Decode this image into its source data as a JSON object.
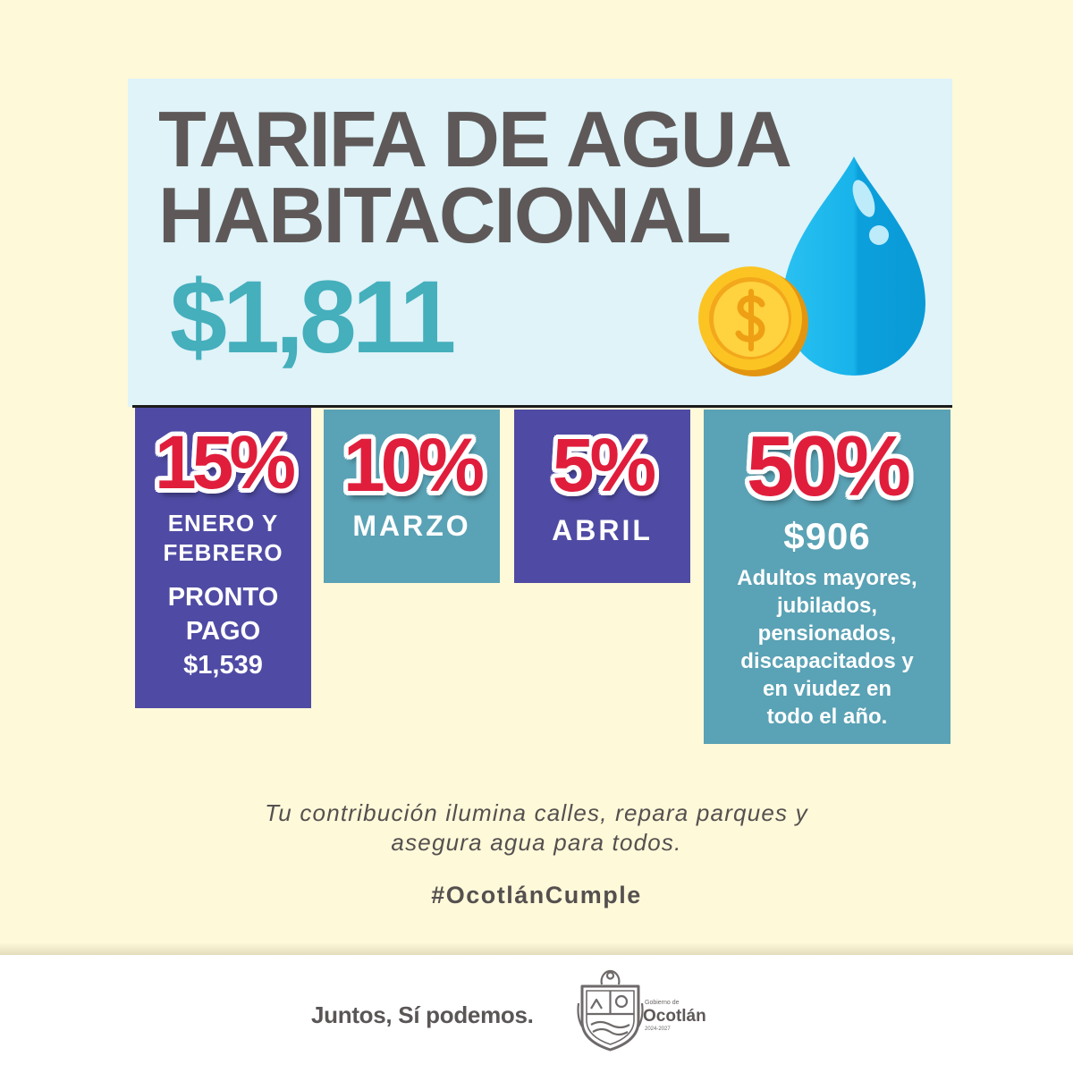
{
  "poster": {
    "title_line1": "TARIFA DE AGUA",
    "title_line2": "HABITACIONAL",
    "price": "$1,811"
  },
  "discounts": [
    {
      "percent": "15%",
      "period": [
        "ENERO Y",
        "FEBRERO"
      ],
      "detail": [
        "PRONTO",
        "PAGO",
        "$1,539"
      ]
    },
    {
      "percent": "10%",
      "period": [
        "MARZO"
      ]
    },
    {
      "percent": "5%",
      "period": [
        "ABRIL"
      ]
    },
    {
      "percent": "50%",
      "amount": "$906",
      "beneficiaries": [
        "Adultos mayores,",
        "jubilados,",
        "pensionados,",
        "discapacitados y",
        "en viudez en",
        "todo el año."
      ]
    }
  ],
  "message": {
    "line1": "Tu contribución ilumina calles, repara parques y",
    "line2": "asegura agua para todos."
  },
  "hashtag": "#OcotlánCumple",
  "footer": {
    "slogan": "Juntos, Sí podemos.",
    "logo": {
      "prefix": "Gobierno de",
      "name": "Ocotlán",
      "period": "2024-2027"
    }
  },
  "icons": {
    "water_drop": "water-drop-icon",
    "coin": "coin-icon",
    "logo": "ocotlan-shield-logo"
  },
  "colors": {
    "background": "#FEF9D9",
    "header_panel": "#DFF3F9",
    "title": "#5E5958",
    "price": "#45AFBC",
    "purple": "#4F4BA4",
    "teal": "#5AA2B5",
    "percent_red": "#E01E3C",
    "body_text": "#55504F"
  }
}
